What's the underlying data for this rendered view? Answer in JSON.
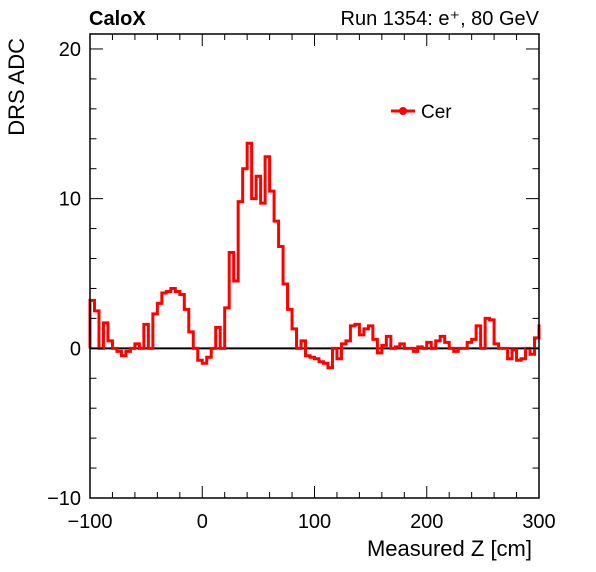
{
  "header": {
    "experiment": "CaloX",
    "run_info": "Run 1354: e⁺, 80 GeV"
  },
  "chart_data": {
    "type": "line",
    "style": "step-histogram",
    "xlabel": "Measured Z [cm]",
    "ylabel": "DRS ADC",
    "xlim": [
      -100,
      300
    ],
    "ylim": [
      -10,
      21
    ],
    "x_ticks": [
      -100,
      0,
      100,
      200,
      300
    ],
    "y_ticks": [
      -10,
      0,
      10,
      20
    ],
    "x_minor_step": 20,
    "y_minor_step": 2,
    "zero_line": true,
    "legend": {
      "position": "top-right",
      "marker": "line-dot"
    },
    "colors": {
      "series": "#ff0000",
      "axis": "#000000"
    },
    "series": [
      {
        "name": "Cer",
        "bin_edges": [
          -100,
          -96,
          -92,
          -88,
          -84,
          -80,
          -76,
          -72,
          -68,
          -64,
          -60,
          -56,
          -52,
          -48,
          -44,
          -40,
          -36,
          -32,
          -28,
          -24,
          -20,
          -16,
          -12,
          -8,
          -4,
          0,
          4,
          8,
          12,
          16,
          20,
          24,
          28,
          32,
          36,
          40,
          44,
          48,
          52,
          56,
          60,
          64,
          68,
          72,
          76,
          80,
          84,
          88,
          92,
          96,
          100,
          104,
          108,
          112,
          116,
          120,
          124,
          128,
          132,
          136,
          140,
          144,
          148,
          152,
          156,
          160,
          164,
          168,
          172,
          176,
          180,
          184,
          188,
          192,
          196,
          200,
          204,
          208,
          212,
          216,
          220,
          224,
          228,
          232,
          236,
          240,
          244,
          248,
          252,
          256,
          260,
          264,
          268,
          272,
          276,
          280,
          284,
          288,
          292,
          296,
          300
        ],
        "values": [
          3.2,
          2.5,
          0.0,
          1.7,
          0.5,
          0.0,
          -0.2,
          -0.5,
          -0.2,
          0.0,
          0.3,
          0.0,
          1.6,
          0.0,
          2.3,
          3.0,
          3.7,
          3.8,
          4.0,
          3.8,
          3.6,
          2.6,
          1.1,
          0.0,
          -0.8,
          -1.0,
          -0.6,
          0.0,
          1.4,
          0.0,
          2.7,
          6.4,
          4.5,
          9.8,
          12.0,
          13.7,
          10.0,
          11.5,
          9.7,
          12.8,
          10.5,
          8.5,
          6.8,
          4.3,
          2.6,
          1.3,
          0.0,
          0.5,
          -0.5,
          -0.6,
          -0.7,
          -0.9,
          -1.0,
          -1.3,
          0.0,
          -0.7,
          0.3,
          0.5,
          1.5,
          1.6,
          0.9,
          1.3,
          1.5,
          0.6,
          -0.3,
          0.2,
          0.8,
          0.0,
          0.1,
          0.3,
          0.0,
          0.0,
          -0.2,
          0.1,
          0.0,
          0.4,
          0.0,
          0.5,
          0.8,
          0.4,
          0.0,
          -0.2,
          0.0,
          0.0,
          0.4,
          0.6,
          1.5,
          0.0,
          2.0,
          1.9,
          0.3,
          0.0,
          0.0,
          -0.7,
          -0.1,
          -0.8,
          -0.7,
          0.0,
          -0.4,
          0.7,
          1.6
        ]
      }
    ]
  }
}
